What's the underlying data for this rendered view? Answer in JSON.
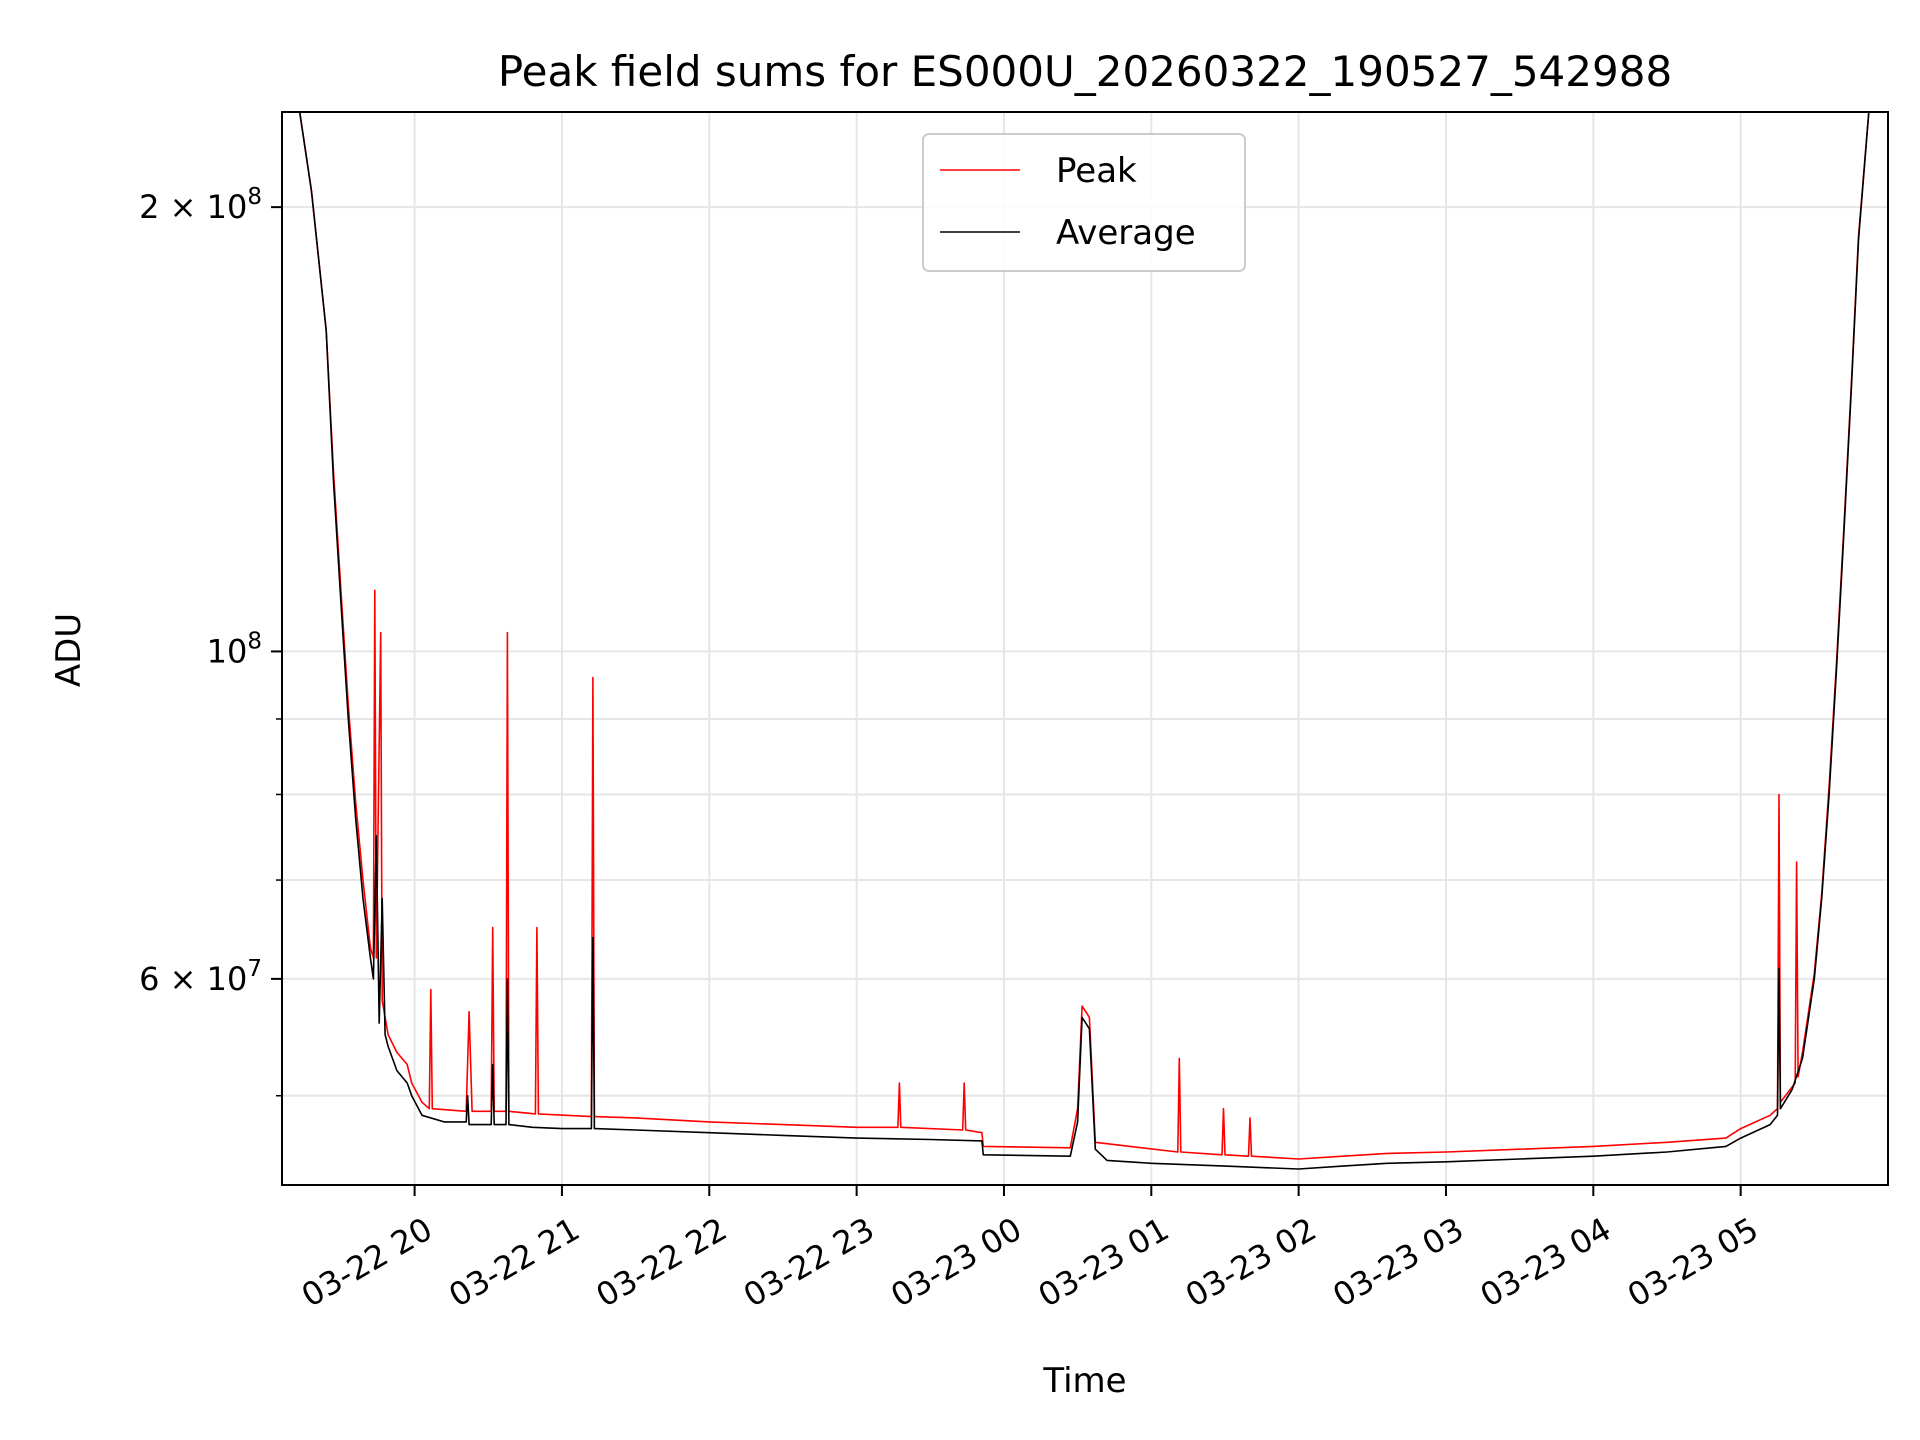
{
  "chart_data": {
    "type": "line",
    "title": "Peak field sums for ES000U_20260322_190527_542988",
    "xlabel": "Time",
    "ylabel": "ADU",
    "yscale": "log",
    "grid": true,
    "legend_position": "top-center",
    "colors": {
      "Peak": "#ff0000",
      "Average": "#000000",
      "grid": "#e6e6e6"
    },
    "x_range_hours": [
      -0.9,
      10.0
    ],
    "ylim": [
      43500000,
      232000000
    ],
    "x_ticks": [
      {
        "hours": 0,
        "label": "03-22 20"
      },
      {
        "hours": 1,
        "label": "03-22 21"
      },
      {
        "hours": 2,
        "label": "03-22 22"
      },
      {
        "hours": 3,
        "label": "03-22 23"
      },
      {
        "hours": 4,
        "label": "03-23 00"
      },
      {
        "hours": 5,
        "label": "03-23 01"
      },
      {
        "hours": 6,
        "label": "03-23 02"
      },
      {
        "hours": 7,
        "label": "03-23 03"
      },
      {
        "hours": 8,
        "label": "03-23 04"
      },
      {
        "hours": 9,
        "label": "03-23 05"
      }
    ],
    "y_major_ticks": [
      {
        "value": 200000000,
        "mantissa": "2 × 10",
        "exp": "8"
      },
      {
        "value": 100000000,
        "mantissa": "10",
        "exp": "8"
      },
      {
        "value": 60000000,
        "mantissa": "6 × 10",
        "exp": "7"
      }
    ],
    "y_minor_ticks": [
      50000000,
      70000000,
      80000000,
      90000000
    ],
    "series": [
      {
        "name": "Average",
        "points": [
          [
            -0.9,
            232000000
          ],
          [
            -0.78,
            232000000
          ],
          [
            -0.7,
            205000000
          ],
          [
            -0.6,
            165000000
          ],
          [
            -0.55,
            130000000
          ],
          [
            -0.5,
            108000000
          ],
          [
            -0.45,
            90000000
          ],
          [
            -0.4,
            77000000
          ],
          [
            -0.35,
            68000000
          ],
          [
            -0.3,
            62000000
          ],
          [
            -0.28,
            60000000
          ],
          [
            -0.26,
            75000000
          ],
          [
            -0.24,
            56000000
          ],
          [
            -0.22,
            68000000
          ],
          [
            -0.2,
            55000000
          ],
          [
            -0.18,
            54000000
          ],
          [
            -0.12,
            52000000
          ],
          [
            -0.05,
            51000000
          ],
          [
            -0.02,
            50000000
          ],
          [
            0.05,
            48500000
          ],
          [
            0.2,
            48000000
          ],
          [
            0.35,
            48000000
          ],
          [
            0.36,
            50000000
          ],
          [
            0.37,
            47800000
          ],
          [
            0.52,
            47800000
          ],
          [
            0.53,
            52500000
          ],
          [
            0.54,
            47800000
          ],
          [
            0.62,
            47800000
          ],
          [
            0.63,
            60000000
          ],
          [
            0.64,
            47800000
          ],
          [
            0.8,
            47600000
          ],
          [
            1.0,
            47500000
          ],
          [
            1.2,
            47500000
          ],
          [
            1.21,
            64000000
          ],
          [
            1.22,
            47500000
          ],
          [
            1.5,
            47400000
          ],
          [
            2.0,
            47200000
          ],
          [
            2.5,
            47000000
          ],
          [
            3.0,
            46800000
          ],
          [
            3.5,
            46700000
          ],
          [
            3.85,
            46600000
          ],
          [
            3.86,
            45600000
          ],
          [
            4.45,
            45500000
          ],
          [
            4.5,
            48000000
          ],
          [
            4.53,
            56500000
          ],
          [
            4.58,
            55500000
          ],
          [
            4.62,
            46000000
          ],
          [
            4.7,
            45200000
          ],
          [
            5.0,
            45000000
          ],
          [
            5.5,
            44800000
          ],
          [
            6.0,
            44600000
          ],
          [
            6.3,
            44800000
          ],
          [
            6.6,
            45000000
          ],
          [
            7.0,
            45100000
          ],
          [
            7.5,
            45300000
          ],
          [
            8.0,
            45500000
          ],
          [
            8.5,
            45800000
          ],
          [
            8.9,
            46200000
          ],
          [
            9.0,
            46800000
          ],
          [
            9.2,
            47800000
          ],
          [
            9.25,
            48500000
          ],
          [
            9.26,
            61000000
          ],
          [
            9.27,
            49000000
          ],
          [
            9.35,
            50500000
          ],
          [
            9.42,
            53000000
          ],
          [
            9.5,
            60000000
          ],
          [
            9.55,
            68000000
          ],
          [
            9.6,
            80000000
          ],
          [
            9.65,
            97000000
          ],
          [
            9.7,
            120000000
          ],
          [
            9.75,
            150000000
          ],
          [
            9.8,
            190000000
          ],
          [
            9.87,
            232000000
          ],
          [
            10.0,
            232000000
          ]
        ]
      },
      {
        "name": "Peak",
        "points": [
          [
            -0.9,
            232000000
          ],
          [
            -0.78,
            232000000
          ],
          [
            -0.7,
            205000000
          ],
          [
            -0.6,
            165000000
          ],
          [
            -0.55,
            132000000
          ],
          [
            -0.5,
            110000000
          ],
          [
            -0.45,
            92000000
          ],
          [
            -0.4,
            79000000
          ],
          [
            -0.35,
            70000000
          ],
          [
            -0.3,
            63000000
          ],
          [
            -0.28,
            62000000
          ],
          [
            -0.27,
            110000000
          ],
          [
            -0.26,
            62000000
          ],
          [
            -0.23,
            103000000
          ],
          [
            -0.22,
            58000000
          ],
          [
            -0.18,
            55000000
          ],
          [
            -0.12,
            53500000
          ],
          [
            -0.05,
            52500000
          ],
          [
            -0.02,
            51000000
          ],
          [
            0.05,
            49500000
          ],
          [
            0.1,
            49000000
          ],
          [
            0.11,
            59000000
          ],
          [
            0.12,
            49000000
          ],
          [
            0.35,
            48800000
          ],
          [
            0.37,
            57000000
          ],
          [
            0.39,
            48800000
          ],
          [
            0.52,
            48800000
          ],
          [
            0.53,
            65000000
          ],
          [
            0.54,
            48800000
          ],
          [
            0.62,
            48800000
          ],
          [
            0.63,
            103000000
          ],
          [
            0.64,
            48800000
          ],
          [
            0.82,
            48600000
          ],
          [
            0.83,
            65000000
          ],
          [
            0.84,
            48600000
          ],
          [
            1.2,
            48400000
          ],
          [
            1.21,
            96000000
          ],
          [
            1.22,
            48400000
          ],
          [
            1.5,
            48300000
          ],
          [
            2.0,
            48000000
          ],
          [
            2.5,
            47800000
          ],
          [
            3.0,
            47600000
          ],
          [
            3.28,
            47600000
          ],
          [
            3.29,
            51000000
          ],
          [
            3.3,
            47600000
          ],
          [
            3.72,
            47400000
          ],
          [
            3.73,
            51000000
          ],
          [
            3.74,
            47400000
          ],
          [
            3.85,
            47200000
          ],
          [
            3.86,
            46200000
          ],
          [
            4.45,
            46100000
          ],
          [
            4.5,
            49000000
          ],
          [
            4.53,
            57500000
          ],
          [
            4.58,
            56500000
          ],
          [
            4.62,
            46500000
          ],
          [
            5.18,
            45800000
          ],
          [
            5.19,
            53000000
          ],
          [
            5.2,
            45800000
          ],
          [
            5.48,
            45600000
          ],
          [
            5.49,
            49000000
          ],
          [
            5.5,
            45600000
          ],
          [
            5.66,
            45500000
          ],
          [
            5.67,
            48300000
          ],
          [
            5.68,
            45500000
          ],
          [
            6.0,
            45300000
          ],
          [
            6.3,
            45500000
          ],
          [
            6.6,
            45700000
          ],
          [
            7.0,
            45800000
          ],
          [
            7.5,
            46000000
          ],
          [
            8.0,
            46200000
          ],
          [
            8.5,
            46500000
          ],
          [
            8.9,
            46800000
          ],
          [
            9.0,
            47500000
          ],
          [
            9.2,
            48500000
          ],
          [
            9.25,
            49000000
          ],
          [
            9.26,
            80000000
          ],
          [
            9.27,
            49500000
          ],
          [
            9.37,
            51000000
          ],
          [
            9.38,
            72000000
          ],
          [
            9.39,
            51500000
          ],
          [
            9.42,
            53500000
          ],
          [
            9.5,
            60500000
          ],
          [
            9.55,
            68500000
          ],
          [
            9.6,
            81000000
          ],
          [
            9.65,
            98000000
          ],
          [
            9.7,
            121000000
          ],
          [
            9.75,
            151000000
          ],
          [
            9.8,
            191000000
          ],
          [
            9.87,
            232000000
          ],
          [
            10.0,
            232000000
          ]
        ]
      }
    ],
    "legend": [
      {
        "name": "Peak",
        "color": "#ff0000"
      },
      {
        "name": "Average",
        "color": "#000000"
      }
    ]
  }
}
